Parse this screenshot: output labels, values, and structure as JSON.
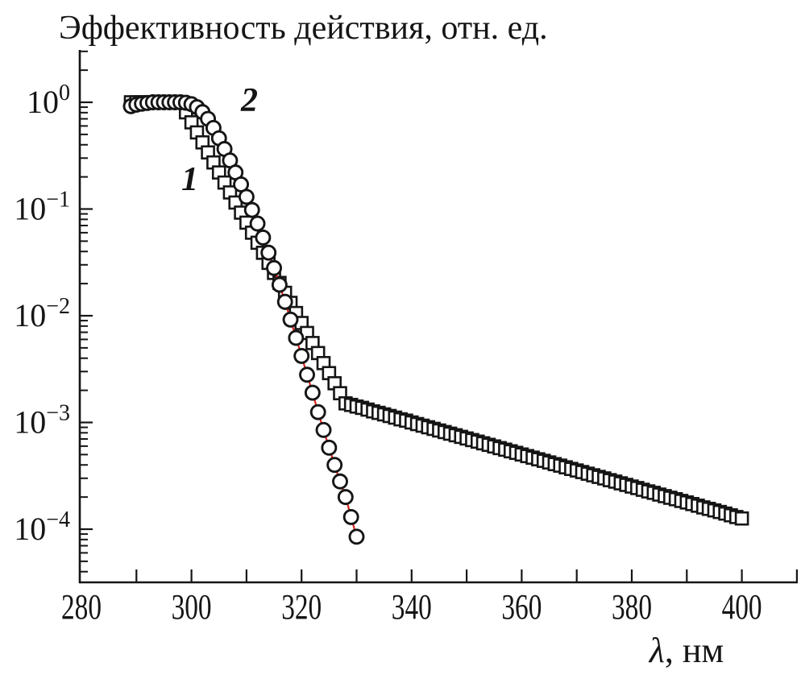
{
  "figure": {
    "xlabel_lambda": "λ",
    "xlabel_rest": ", нм"
  },
  "chart_data": {
    "type": "scatter",
    "title": "Эффективность действия, отн. ед.",
    "xlabel": "λ, нм",
    "ylabel": "Эффективность действия, отн. ед.",
    "x_scale": "linear",
    "y_scale": "log",
    "xlim": [
      279.7,
      410.2
    ],
    "ylim": [
      3.2e-05,
      3.1
    ],
    "grid": false,
    "legend": "none",
    "x_ticks": [
      290,
      300,
      310,
      320,
      330,
      340,
      350,
      360,
      370,
      380,
      390,
      400,
      410
    ],
    "x_tick_labels": [
      {
        "value": 280,
        "label": "280"
      },
      {
        "value": 300,
        "label": "300"
      },
      {
        "value": 320,
        "label": "320"
      },
      {
        "value": 340,
        "label": "340"
      },
      {
        "value": 360,
        "label": "360"
      },
      {
        "value": 380,
        "label": "380"
      },
      {
        "value": 400,
        "label": "400"
      }
    ],
    "y_major_ticks": [
      {
        "value": 1,
        "base": "10",
        "exp": "0"
      },
      {
        "value": 0.1,
        "base": "10",
        "exp": "−1"
      },
      {
        "value": 0.01,
        "base": "10",
        "exp": "−2"
      },
      {
        "value": 0.001,
        "base": "10",
        "exp": "−3"
      },
      {
        "value": 0.0001,
        "base": "10",
        "exp": "−4"
      }
    ],
    "colors": {
      "ink": "#151515",
      "curve2_line": "#e2201c",
      "marker_fill": "#ffffff"
    },
    "series": [
      {
        "name": "1",
        "marker": "square",
        "marker_size_px": 15,
        "line": "none",
        "x": [
          289,
          290,
          291,
          292,
          293,
          294,
          295,
          296,
          297,
          298,
          299,
          300,
          301,
          302,
          303,
          304,
          305,
          306,
          307,
          308,
          309,
          310,
          311,
          312,
          313,
          314,
          315,
          316,
          317,
          318,
          319,
          320,
          321,
          322,
          323,
          324,
          325,
          326,
          327,
          328,
          329,
          330,
          331,
          332,
          333,
          334,
          335,
          336,
          337,
          338,
          339,
          340,
          341,
          342,
          343,
          344,
          345,
          346,
          347,
          348,
          349,
          350,
          351,
          352,
          353,
          354,
          355,
          356,
          357,
          358,
          359,
          360,
          361,
          362,
          363,
          364,
          365,
          366,
          367,
          368,
          369,
          370,
          371,
          372,
          373,
          374,
          375,
          376,
          377,
          378,
          379,
          380,
          381,
          382,
          383,
          384,
          385,
          386,
          387,
          388,
          389,
          390,
          391,
          392,
          393,
          394,
          395,
          396,
          397,
          398,
          399,
          400
        ],
        "y": [
          1,
          1,
          1,
          1,
          1,
          1,
          1,
          1,
          1,
          1,
          0.805,
          0.649,
          0.522,
          0.421,
          0.339,
          0.273,
          0.22,
          0.177,
          0.143,
          0.115,
          0.0925,
          0.0745,
          0.06,
          0.0483,
          0.0389,
          0.0313,
          0.0252,
          0.0203,
          0.0164,
          0.0132,
          0.0106,
          0.00855,
          0.00689,
          0.00555,
          0.00447,
          0.0036,
          0.0029,
          0.00233,
          0.00188,
          0.00151,
          0.00146,
          0.00141,
          0.00137,
          0.00132,
          0.00127,
          0.00123,
          0.00119,
          0.00115,
          0.00111,
          0.00107,
          0.00104,
          0.001,
          0.000966,
          0.000933,
          0.000902,
          0.000871,
          0.000841,
          0.000813,
          0.000785,
          0.000759,
          0.000733,
          0.000708,
          0.000684,
          0.000661,
          0.000638,
          0.000617,
          0.000596,
          0.000575,
          0.000556,
          0.000537,
          0.000519,
          0.000501,
          0.000484,
          0.000468,
          0.000452,
          0.000437,
          0.000422,
          0.000407,
          0.000394,
          0.00038,
          0.000367,
          0.000355,
          0.000343,
          0.000331,
          0.00032,
          0.000309,
          0.000299,
          0.000288,
          0.000279,
          0.000269,
          0.00026,
          0.000251,
          0.000243,
          0.000234,
          0.000226,
          0.000219,
          0.000211,
          0.000204,
          0.000197,
          0.000191,
          0.000184,
          0.000178,
          0.000172,
          0.000166,
          0.00016,
          0.000155,
          0.00015,
          0.000145,
          0.00014,
          0.000135,
          0.00013,
          0.000126
        ]
      },
      {
        "name": "2",
        "marker": "circle",
        "marker_size_px": 17,
        "line": "solid",
        "line_color": "#e2201c",
        "x": [
          289,
          290,
          291,
          292,
          293,
          294,
          295,
          296,
          297,
          298,
          299,
          300,
          301,
          302,
          303,
          304,
          305,
          306,
          307,
          308,
          309,
          310,
          311,
          312,
          313,
          314,
          315,
          316,
          317,
          318,
          319,
          320,
          321,
          322,
          323,
          324,
          325,
          326,
          327,
          328,
          329,
          330
        ],
        "y": [
          0.92,
          0.95,
          0.97,
          0.985,
          1,
          1,
          1,
          1,
          1,
          1,
          0.99,
          0.96,
          0.9,
          0.81,
          0.7,
          0.575,
          0.46,
          0.365,
          0.285,
          0.22,
          0.17,
          0.13,
          0.098,
          0.073,
          0.054,
          0.039,
          0.028,
          0.0195,
          0.0135,
          0.0092,
          0.0062,
          0.0042,
          0.0028,
          0.0019,
          0.00125,
          0.00085,
          0.00058,
          0.0004,
          0.00028,
          0.0002,
          0.00013,
          8.5e-05
        ]
      }
    ]
  }
}
